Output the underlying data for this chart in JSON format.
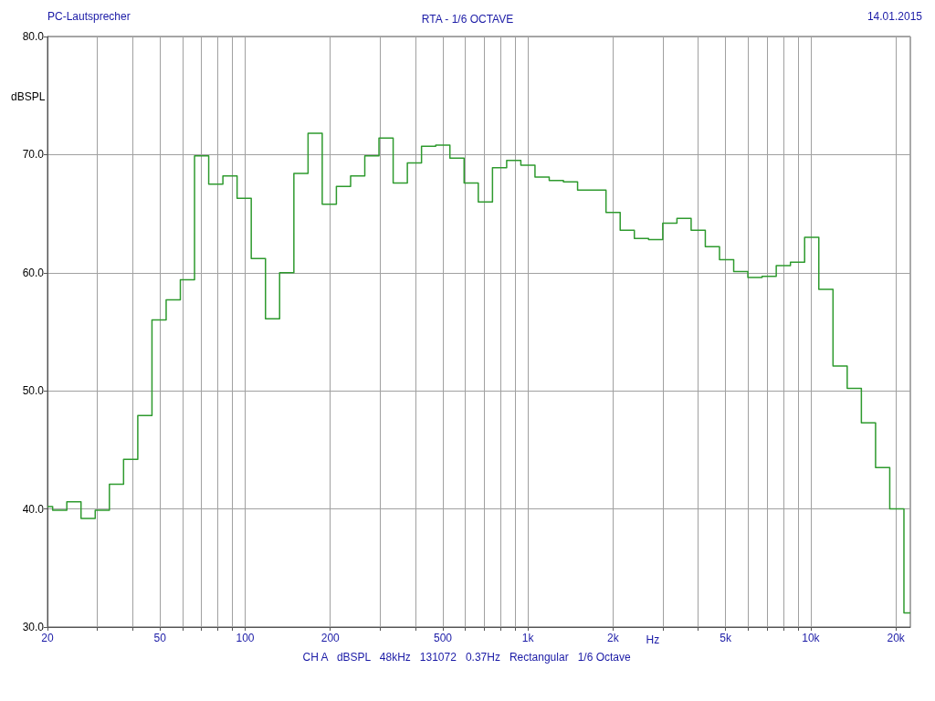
{
  "chart_data": {
    "type": "step",
    "title": "RTA - 1/6 OCTAVE",
    "subtitle": "PC-Lautsprecher",
    "xlabel": "Hz",
    "ylabel": "dBSPL",
    "annotations": [
      "14.01.2015",
      "CH A   dBSPL   48kHz   131072   0.37Hz   Rectangular   1/6 Octave"
    ],
    "x": [
      20,
      20.86,
      23.41,
      26.28,
      29.5,
      33.11,
      37.16,
      41.72,
      46.83,
      52.56,
      59,
      66.23,
      74.33,
      83.43,
      93.65,
      105.1,
      118,
      132.4,
      148.7,
      166.9,
      187.3,
      210.2,
      236,
      264.9,
      297.3,
      333.7,
      374.6,
      420.4,
      471.9,
      529.7,
      594.6,
      667.4,
      749.2,
      840.9,
      943.9,
      1059,
      1189,
      1335,
      1498,
      1682,
      1888,
      2119,
      2378,
      2670,
      2997,
      3364,
      3776,
      4238,
      4757,
      5340,
      5993,
      6727,
      7551,
      8476,
      9514,
      10679,
      11987,
      13454,
      15102,
      16951,
      19027,
      21357,
      22500
    ],
    "series": [
      {
        "color": "#2e9a2e",
        "values": [
          40.2,
          39.9,
          40.6,
          39.2,
          39.9,
          42.1,
          44.2,
          47.9,
          56.0,
          57.7,
          59.4,
          69.9,
          67.5,
          68.2,
          66.3,
          61.2,
          56.1,
          60.0,
          68.4,
          71.8,
          65.8,
          67.3,
          68.2,
          69.9,
          71.4,
          67.6,
          69.3,
          70.7,
          70.8,
          69.7,
          67.6,
          66.0,
          68.9,
          69.5,
          69.1,
          68.1,
          67.8,
          67.7,
          67.0,
          67.0,
          65.1,
          63.6,
          62.9,
          62.8,
          64.2,
          64.6,
          63.6,
          62.2,
          61.1,
          60.1,
          59.6,
          59.7,
          60.6,
          60.9,
          63.0,
          58.6,
          52.1,
          50.2,
          47.3,
          43.5,
          40.0,
          31.2,
          31.2
        ]
      }
    ],
    "log": "x",
    "xlim": [
      20,
      22500
    ],
    "ylim": [
      30,
      80
    ],
    "xticks": [
      20,
      {
        "value": 30,
        "label": null
      },
      {
        "value": 40,
        "label": null
      },
      50,
      {
        "value": 60,
        "label": null
      },
      {
        "value": 70,
        "label": null
      },
      {
        "value": 80,
        "label": null
      },
      {
        "value": 90,
        "label": null
      },
      100,
      200,
      {
        "value": 300,
        "label": null
      },
      {
        "value": 400,
        "label": null
      },
      500,
      {
        "value": 600,
        "label": null
      },
      {
        "value": 700,
        "label": null
      },
      {
        "value": 800,
        "label": null
      },
      {
        "value": 900,
        "label": null
      },
      {
        "value": 1000,
        "label": "1k"
      },
      {
        "value": 2000,
        "label": "2k"
      },
      {
        "value": 3000,
        "label": null
      },
      {
        "value": 4000,
        "label": null
      },
      {
        "value": 5000,
        "label": "5k"
      },
      {
        "value": 6000,
        "label": null
      },
      {
        "value": 7000,
        "label": null
      },
      {
        "value": 8000,
        "label": null
      },
      {
        "value": 9000,
        "label": null
      },
      {
        "value": 10000,
        "label": "10k"
      },
      {
        "value": 20000,
        "label": "20k"
      }
    ],
    "yticks": [
      {
        "value": 30,
        "label": "30.0"
      },
      {
        "value": 40,
        "label": "40.0"
      },
      {
        "value": 50,
        "label": "50.0"
      },
      {
        "value": 60,
        "label": "60.0"
      },
      {
        "value": 70,
        "label": "70.0"
      },
      {
        "value": 80,
        "label": "80.0"
      }
    ],
    "grid": true,
    "marker": "none",
    "line_style": "solid"
  }
}
